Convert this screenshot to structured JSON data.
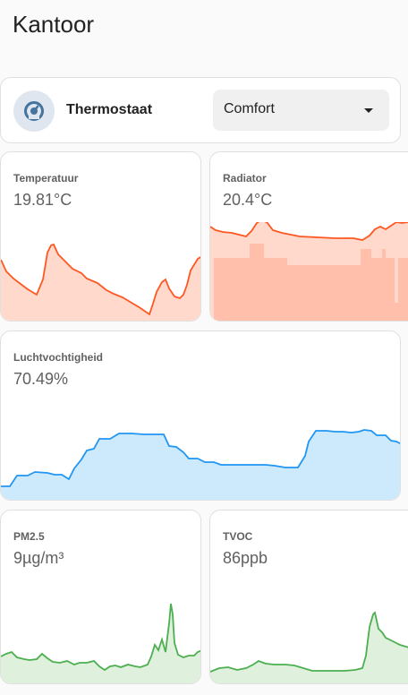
{
  "page": {
    "title": "Kantoor"
  },
  "thermostat": {
    "name": "Thermostaat",
    "mode": "Comfort",
    "icon": "thermostat-dial-icon"
  },
  "sensors": {
    "temp": {
      "name": "Temperatuur",
      "value": "19.81°C"
    },
    "radiator": {
      "name": "Radiator",
      "value": "20.4°C"
    },
    "humidity": {
      "name": "Luchtvochtigheid",
      "value": "70.49%"
    },
    "pm25": {
      "name": "PM2.5",
      "value": "9µg/m³"
    },
    "tvoc": {
      "name": "TVOC",
      "value": "86ppb"
    }
  },
  "colors": {
    "temp": "#ff5722",
    "temp_fill": "#ffd9cc",
    "radiator_fill": "#ffbfab",
    "humidity": "#2196f3",
    "humidity_fill": "#cceafb",
    "air": "#4caf50",
    "air_fill": "#dff0dd"
  }
}
